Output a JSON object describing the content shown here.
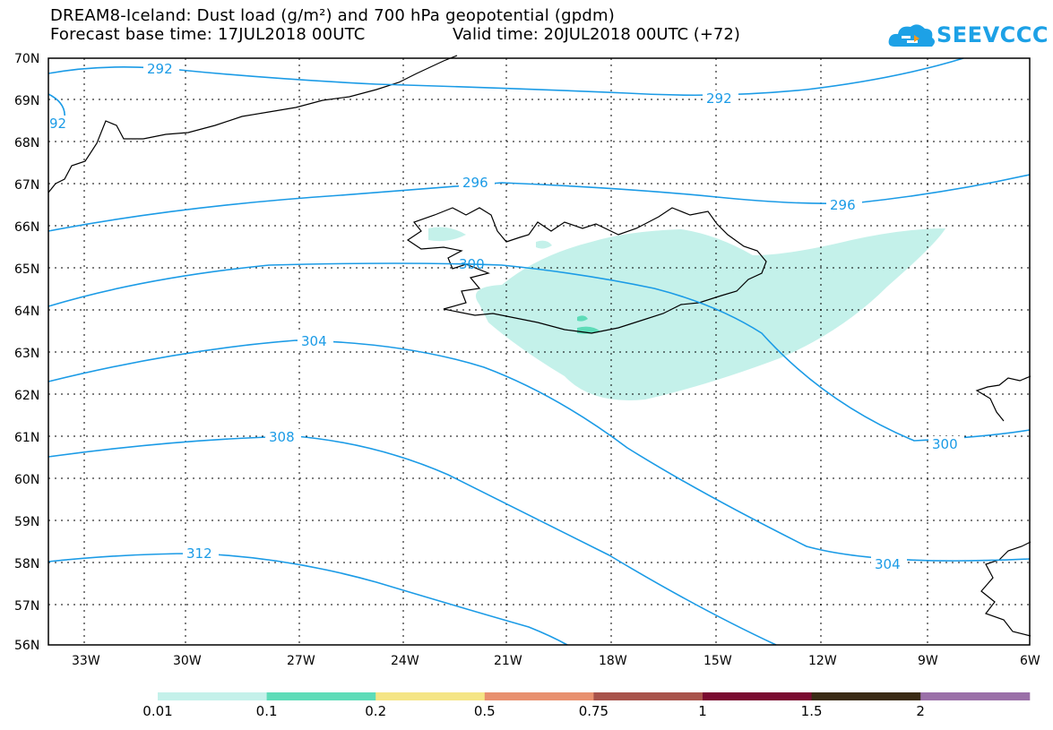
{
  "title": {
    "line1": "DREAM8-Iceland: Dust load (g/m²) and 700 hPa geopotential (gpdm)",
    "base_time": "Forecast base time: 17JUL2018 00UTC",
    "valid_time": "Valid time: 20JUL2018 00UTC (+72)"
  },
  "logo": {
    "text": "SEEVCCC",
    "icon": "cloud-icon",
    "color": "#1da1e6"
  },
  "map": {
    "lat_labels": [
      "70N",
      "69N",
      "68N",
      "67N",
      "66N",
      "65N",
      "64N",
      "63N",
      "62N",
      "61N",
      "60N",
      "59N",
      "58N",
      "57N",
      "56N"
    ],
    "lon_labels": [
      "33W",
      "30W",
      "27W",
      "24W",
      "21W",
      "18W",
      "15W",
      "12W",
      "9W",
      "6W"
    ],
    "contour_color": "#1b9be6",
    "contour_labels": [
      "292",
      "292",
      "92",
      "296",
      "296",
      "300",
      "300",
      "304",
      "304",
      "308",
      "312"
    ]
  },
  "colorbar": {
    "colors": [
      "#c4f1ea",
      "#5ddcb8",
      "#f5e585",
      "#e8906e",
      "#a8524a",
      "#7a0a30",
      "#3a2a14",
      "#9a6fa8"
    ],
    "labels": [
      "0.01",
      "0.1",
      "0.2",
      "0.5",
      "0.75",
      "1",
      "1.5",
      "2"
    ]
  }
}
